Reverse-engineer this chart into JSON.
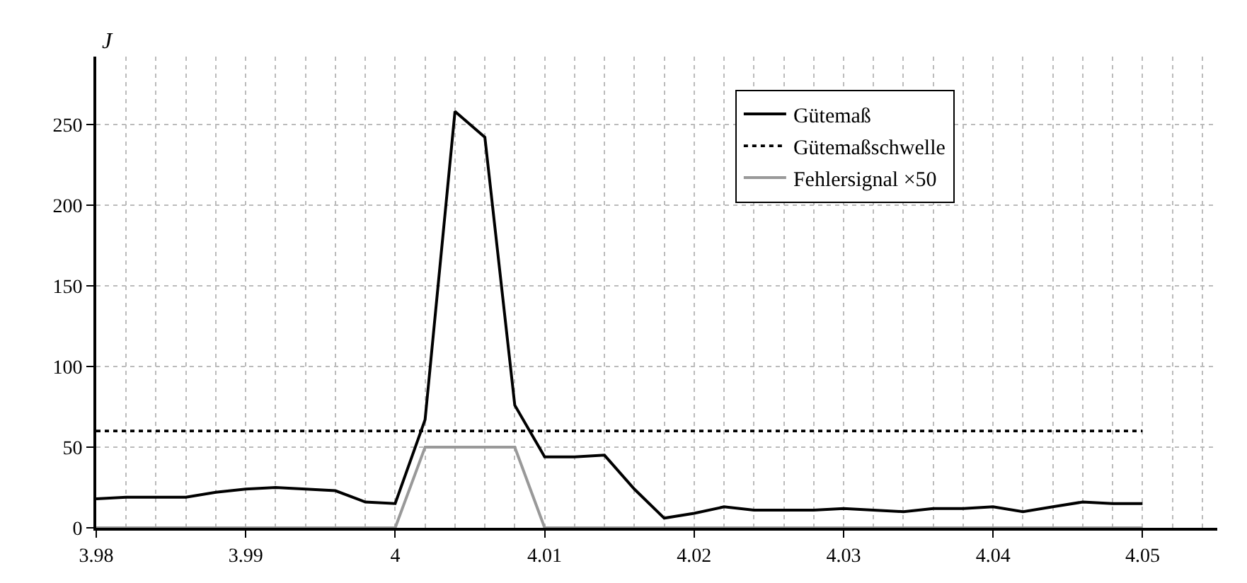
{
  "chart_data": {
    "type": "line",
    "ylabel": "J",
    "x": [
      3.98,
      3.982,
      3.984,
      3.986,
      3.988,
      3.99,
      3.992,
      3.994,
      3.996,
      3.998,
      4.0,
      4.002,
      4.004,
      4.006,
      4.008,
      4.01,
      4.012,
      4.014,
      4.016,
      4.018,
      4.02,
      4.022,
      4.024,
      4.026,
      4.028,
      4.03,
      4.032,
      4.034,
      4.036,
      4.038,
      4.04,
      4.042,
      4.044,
      4.046,
      4.048,
      4.05
    ],
    "series": [
      {
        "name": "Gütemaß",
        "color": "#000000",
        "line_style": "solid",
        "values": [
          18,
          19,
          19,
          19,
          22,
          24,
          25,
          24,
          23,
          16,
          15,
          67,
          258,
          242,
          76,
          44,
          44,
          45,
          24,
          6,
          9,
          13,
          11,
          11,
          11,
          12,
          11,
          10,
          12,
          12,
          13,
          10,
          13,
          16,
          15,
          15
        ]
      },
      {
        "name": "Gütemaßschwelle",
        "color": "#000000",
        "line_style": "dotted",
        "values": [
          60,
          60,
          60,
          60,
          60,
          60,
          60,
          60,
          60,
          60,
          60,
          60,
          60,
          60,
          60,
          60,
          60,
          60,
          60,
          60,
          60,
          60,
          60,
          60,
          60,
          60,
          60,
          60,
          60,
          60,
          60,
          60,
          60,
          60,
          60,
          60
        ]
      },
      {
        "name": "Fehlersignal ×50",
        "color": "#999999",
        "line_style": "solid",
        "values": [
          0,
          0,
          0,
          0,
          0,
          0,
          0,
          0,
          0,
          0,
          0,
          50,
          50,
          50,
          50,
          0,
          0,
          0,
          0,
          0,
          0,
          0,
          0,
          0,
          0,
          0,
          0,
          0,
          0,
          0,
          0,
          0,
          0,
          0,
          0,
          0
        ]
      }
    ],
    "xlim": [
      3.98,
      4.055
    ],
    "xticks": [
      3.98,
      3.99,
      4.0,
      4.01,
      4.02,
      4.03,
      4.04,
      4.05
    ],
    "ylim": [
      0,
      292
    ],
    "yticks": [
      0,
      50,
      100,
      150,
      200,
      250
    ],
    "grid": true,
    "legend": "top right",
    "marker": "none"
  }
}
